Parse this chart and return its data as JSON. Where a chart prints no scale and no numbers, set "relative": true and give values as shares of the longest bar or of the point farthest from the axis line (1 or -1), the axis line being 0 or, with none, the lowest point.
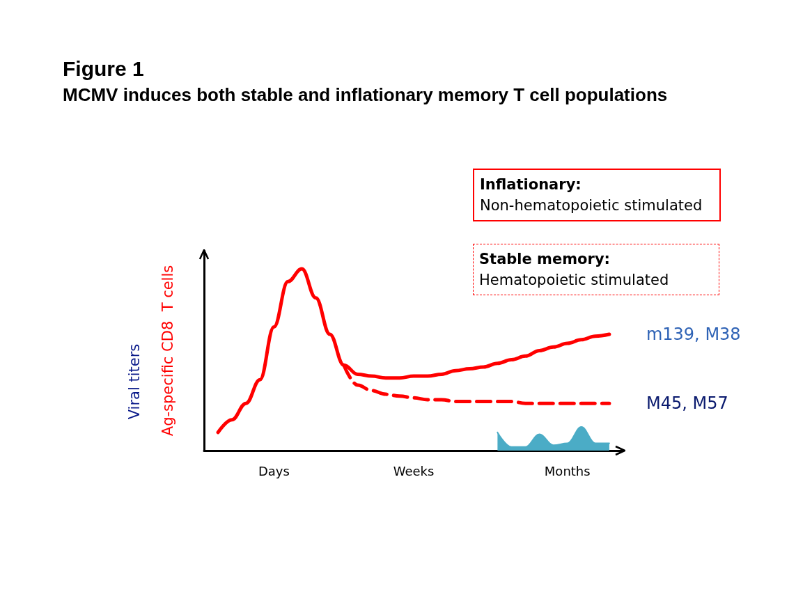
{
  "chart_data": {
    "type": "line",
    "title": "Figure 1",
    "subtitle": "MCMV induces both stable and inflationary memory T cell populations",
    "ylabel": "Ag-specific CD8  T cells",
    "relative": true,
    "legend": false,
    "grid": false,
    "categories": [
      null,
      null,
      null,
      null,
      null,
      "Days",
      null,
      null,
      null,
      null,
      null,
      null,
      null,
      null,
      null,
      "Weeks",
      null,
      null,
      null,
      null,
      null,
      null,
      null,
      null,
      null,
      null,
      "Months",
      null,
      null,
      null,
      null
    ],
    "series": [
      {
        "name": "m139, M38",
        "color": "#ff0000",
        "line_style": "solid",
        "values": [
          null,
          0.1,
          0.17,
          0.26,
          0.39,
          0.68,
          0.93,
          1.0,
          0.84,
          0.64,
          0.47,
          0.42,
          0.41,
          0.4,
          0.4,
          0.41,
          0.41,
          0.42,
          0.44,
          0.45,
          0.46,
          0.48,
          0.5,
          0.52,
          0.55,
          0.57,
          0.59,
          0.61,
          0.63,
          0.64,
          null
        ]
      },
      {
        "name": "M45, M57",
        "color": "#ff0000",
        "line_style": "dashed",
        "values": [
          null,
          null,
          null,
          null,
          null,
          null,
          null,
          null,
          null,
          null,
          0.47,
          0.36,
          0.33,
          0.31,
          0.3,
          0.29,
          0.28,
          0.28,
          0.27,
          0.27,
          0.27,
          0.27,
          0.27,
          0.26,
          0.26,
          0.26,
          0.26,
          0.26,
          0.26,
          0.26,
          null
        ]
      },
      {
        "type": "area",
        "color": "#4bacc6",
        "values": [
          null,
          null,
          null,
          null,
          null,
          null,
          null,
          null,
          null,
          null,
          null,
          null,
          null,
          null,
          null,
          null,
          null,
          null,
          null,
          null,
          null,
          0.1,
          0.02,
          0.02,
          0.09,
          0.03,
          0.04,
          0.13,
          0.04,
          0.04,
          null
        ]
      }
    ],
    "annotations": [
      "Viral titers",
      "Inflationary:",
      "Non-hematopoietic stimulated",
      "Stable memory:",
      "Hematopoietic stimulated"
    ]
  }
}
